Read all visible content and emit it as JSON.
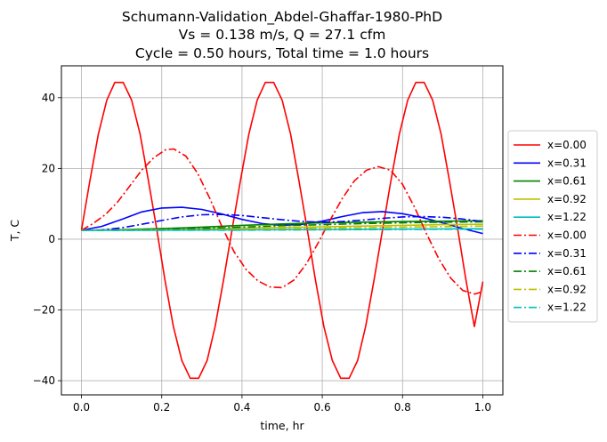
{
  "chart_data": {
    "type": "line",
    "title": [
      "Schumann-Validation_Abdel-Ghaffar-1980-PhD",
      "Vs = 0.138 m/s, Q = 27.1 cfm",
      "Cycle = 0.50 hours, Total time = 1.0 hours"
    ],
    "xlabel": "time, hr",
    "ylabel": "T, C",
    "xlim": [
      -0.05,
      1.05
    ],
    "ylim": [
      -44,
      49
    ],
    "xticks": [
      0.0,
      0.2,
      0.4,
      0.6,
      0.8,
      1.0
    ],
    "xtick_labels": [
      "0.0",
      "0.2",
      "0.4",
      "0.6",
      "0.8",
      "1.0"
    ],
    "yticks": [
      -40,
      -20,
      0,
      20,
      40
    ],
    "ytick_labels": [
      "−40",
      "−20",
      "0",
      "20",
      "40"
    ],
    "grid": true,
    "legend_placement": "outside right, center",
    "series": [
      {
        "name": "x=0.00",
        "color": "#ff0000",
        "dash": "solid",
        "x": [
          0.0,
          0.021,
          0.042,
          0.063,
          0.083,
          0.104,
          0.125,
          0.146,
          0.167,
          0.188,
          0.208,
          0.229,
          0.25,
          0.271,
          0.292,
          0.313,
          0.333,
          0.354,
          0.375,
          0.396,
          0.417,
          0.438,
          0.458,
          0.479,
          0.5,
          0.521,
          0.542,
          0.563,
          0.583,
          0.604,
          0.625,
          0.646,
          0.667,
          0.688,
          0.708,
          0.729,
          0.75,
          0.771,
          0.792,
          0.813,
          0.833,
          0.854,
          0.875,
          0.896,
          0.917,
          0.938,
          0.958,
          0.979,
          1.0
        ],
        "y": [
          2.5,
          16.5,
          29.7,
          39.3,
          44.3,
          44.3,
          39.3,
          29.7,
          16.5,
          2.5,
          -11.5,
          -24.7,
          -34.3,
          -39.3,
          -39.3,
          -34.3,
          -24.7,
          -11.5,
          2.5,
          16.5,
          29.7,
          39.3,
          44.3,
          44.3,
          39.3,
          29.7,
          16.5,
          2.5,
          -11.5,
          -24.7,
          -34.3,
          -39.3,
          -39.3,
          -34.3,
          -24.7,
          -11.5,
          2.5,
          16.5,
          29.7,
          39.3,
          44.3,
          44.3,
          39.3,
          29.7,
          16.5,
          2.5,
          -11.5,
          -24.7,
          -12.0
        ]
      },
      {
        "name": "x=0.31",
        "color": "#0000ff",
        "dash": "solid",
        "x": [
          0.0,
          0.05,
          0.1,
          0.15,
          0.2,
          0.25,
          0.3,
          0.35,
          0.4,
          0.45,
          0.5,
          0.55,
          0.6,
          0.65,
          0.7,
          0.75,
          0.8,
          0.85,
          0.9,
          0.95,
          1.0
        ],
        "y": [
          2.5,
          3.6,
          5.6,
          7.7,
          8.8,
          9.0,
          8.4,
          7.1,
          5.6,
          4.4,
          3.9,
          4.2,
          5.1,
          6.4,
          7.5,
          7.8,
          7.2,
          6.1,
          4.6,
          3.0,
          1.6
        ]
      },
      {
        "name": "x=0.61",
        "color": "#008000",
        "dash": "solid",
        "x": [
          0.0,
          0.1,
          0.2,
          0.3,
          0.4,
          0.5,
          0.6,
          0.7,
          0.8,
          0.9,
          1.0
        ],
        "y": [
          2.5,
          2.7,
          3.0,
          3.4,
          3.9,
          4.3,
          4.6,
          4.8,
          5.0,
          5.1,
          5.2
        ]
      },
      {
        "name": "x=0.92",
        "color": "#bfbf00",
        "dash": "solid",
        "x": [
          0.0,
          0.1,
          0.2,
          0.3,
          0.4,
          0.5,
          0.6,
          0.7,
          0.8,
          0.9,
          1.0
        ],
        "y": [
          2.5,
          2.6,
          2.7,
          2.9,
          3.1,
          3.3,
          3.5,
          3.7,
          3.9,
          4.1,
          4.2
        ]
      },
      {
        "name": "x=1.22",
        "color": "#00bfbf",
        "dash": "solid",
        "x": [
          0.0,
          0.1,
          0.2,
          0.3,
          0.4,
          0.5,
          0.6,
          0.7,
          0.8,
          0.9,
          1.0
        ],
        "y": [
          2.5,
          2.5,
          2.55,
          2.6,
          2.65,
          2.7,
          2.75,
          2.8,
          2.85,
          2.9,
          2.95
        ]
      },
      {
        "name": "x=0.00",
        "color": "#ff0000",
        "dash": "dashdot",
        "x": [
          0.0,
          0.03,
          0.06,
          0.09,
          0.12,
          0.15,
          0.18,
          0.21,
          0.23,
          0.26,
          0.29,
          0.32,
          0.35,
          0.38,
          0.41,
          0.44,
          0.47,
          0.5,
          0.53,
          0.56,
          0.59,
          0.62,
          0.65,
          0.68,
          0.71,
          0.74,
          0.77,
          0.8,
          0.83,
          0.86,
          0.89,
          0.92,
          0.95,
          0.98,
          1.0
        ],
        "y": [
          2.5,
          4.5,
          7.0,
          10.5,
          15.0,
          19.5,
          23.0,
          25.3,
          25.5,
          23.5,
          18.5,
          11.5,
          3.5,
          -3.5,
          -8.5,
          -11.8,
          -13.5,
          -13.7,
          -11.5,
          -7.0,
          -1.0,
          5.5,
          11.5,
          16.5,
          19.5,
          20.5,
          19.5,
          15.5,
          9.0,
          1.5,
          -5.5,
          -11.0,
          -14.5,
          -15.5,
          -14.8
        ]
      },
      {
        "name": "x=0.31",
        "color": "#0000ff",
        "dash": "dashdot",
        "x": [
          0.0,
          0.05,
          0.1,
          0.15,
          0.2,
          0.25,
          0.3,
          0.35,
          0.4,
          0.45,
          0.5,
          0.55,
          0.6,
          0.65,
          0.7,
          0.75,
          0.8,
          0.85,
          0.9,
          0.95,
          1.0
        ],
        "y": [
          2.5,
          2.6,
          3.2,
          4.2,
          5.3,
          6.3,
          6.9,
          7.0,
          6.7,
          6.1,
          5.5,
          5.0,
          4.8,
          5.0,
          5.4,
          5.9,
          6.3,
          6.4,
          6.2,
          5.7,
          5.0
        ]
      },
      {
        "name": "x=0.61",
        "color": "#008000",
        "dash": "dashdot",
        "x": [
          0.0,
          0.1,
          0.2,
          0.3,
          0.4,
          0.5,
          0.6,
          0.7,
          0.8,
          0.9,
          1.0
        ],
        "y": [
          2.5,
          2.5,
          2.7,
          3.0,
          3.4,
          3.8,
          4.1,
          4.4,
          4.6,
          4.8,
          4.9
        ]
      },
      {
        "name": "x=0.92",
        "color": "#bfbf00",
        "dash": "dashdot",
        "x": [
          0.0,
          0.1,
          0.2,
          0.3,
          0.4,
          0.5,
          0.6,
          0.7,
          0.8,
          0.9,
          1.0
        ],
        "y": [
          2.5,
          2.5,
          2.55,
          2.65,
          2.8,
          2.95,
          3.1,
          3.25,
          3.4,
          3.55,
          3.7
        ]
      },
      {
        "name": "x=1.22",
        "color": "#00bfbf",
        "dash": "dashdot",
        "x": [
          0.0,
          0.1,
          0.2,
          0.3,
          0.4,
          0.5,
          0.6,
          0.7,
          0.8,
          0.9,
          1.0
        ],
        "y": [
          2.5,
          2.5,
          2.5,
          2.52,
          2.55,
          2.6,
          2.65,
          2.7,
          2.75,
          2.8,
          2.85
        ]
      }
    ]
  }
}
